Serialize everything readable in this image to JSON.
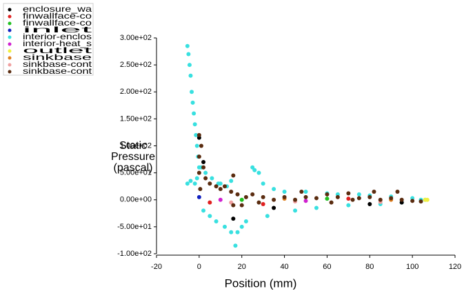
{
  "chart_data": {
    "type": "scatter",
    "x_label": "Position (mm)",
    "y_label": [
      "Static",
      "Pressure",
      "(pascal)"
    ],
    "xlim": [
      -20,
      120
    ],
    "xticks": [
      -20,
      0,
      20,
      40,
      60,
      80,
      100,
      120
    ],
    "ylim": [
      -100,
      300
    ],
    "yticks": [
      {
        "value": -100,
        "label": "-1.00e+02"
      },
      {
        "value": -50,
        "label": "-5.00e+01"
      },
      {
        "value": 0,
        "label": "0.00e+00"
      },
      {
        "value": 50,
        "label": "5.00e+01"
      },
      {
        "value": 100,
        "label": "1.00e+02"
      },
      {
        "value": 150,
        "label": "1.50e+02"
      },
      {
        "value": 200,
        "label": "2.00e+02"
      },
      {
        "value": 250,
        "label": "2.50e+02"
      },
      {
        "value": 300,
        "label": "3.00e+02"
      }
    ],
    "series": [
      {
        "name": "enclosure_wa",
        "color": "#000000",
        "x": [
          0,
          2,
          16,
          35,
          80,
          95
        ],
        "values": [
          115,
          70,
          -35,
          -15,
          -8,
          -5
        ]
      },
      {
        "name": "finwallface-co",
        "color": "#e02020",
        "x": [
          5,
          30,
          70
        ],
        "values": [
          -5,
          -8,
          2
        ]
      },
      {
        "name": "finwallface-co",
        "color": "#20c020",
        "x": [
          20,
          60
        ],
        "values": [
          0,
          2
        ]
      },
      {
        "name": "inlet",
        "color": "#1020c0",
        "x": [
          0
        ],
        "values": [
          5
        ]
      },
      {
        "name": "interior-enclos",
        "color": "#38e0e0",
        "x": [
          -5.5,
          -5,
          -4.5,
          -4,
          -3.5,
          -3,
          -2.5,
          -2,
          -1.5,
          -1,
          -0.5,
          0,
          -5.5,
          -4,
          -2,
          -1,
          1,
          3,
          6,
          9,
          10,
          13,
          15,
          2,
          5,
          8,
          12,
          15,
          17,
          18,
          20,
          22,
          25,
          26,
          28,
          30,
          32,
          35,
          40,
          45,
          50,
          55,
          60,
          65,
          70,
          75,
          80,
          85,
          90,
          95,
          100,
          104,
          106
        ],
        "values": [
          285,
          270,
          250,
          230,
          200,
          180,
          160,
          140,
          120,
          100,
          80,
          60,
          30,
          35,
          30,
          40,
          60,
          50,
          40,
          30,
          30,
          25,
          35,
          -20,
          -30,
          -40,
          -50,
          -60,
          -85,
          -60,
          -50,
          -40,
          60,
          55,
          50,
          30,
          -30,
          20,
          15,
          -20,
          15,
          -15,
          12,
          10,
          -10,
          10,
          8,
          -8,
          6,
          -5,
          3,
          0,
          0
        ]
      },
      {
        "name": "interior-heat_s",
        "color": "#d020d0",
        "x": [
          10,
          50
        ],
        "values": [
          0,
          -2
        ]
      },
      {
        "name": "outlet",
        "color": "#f0f040",
        "x": [
          106,
          107
        ],
        "values": [
          0,
          0
        ]
      },
      {
        "name": "sinkbase",
        "color": "#e08020",
        "x": [
          40,
          90
        ],
        "values": [
          2,
          0
        ]
      },
      {
        "name": "sinkbase-cont",
        "color": "#f0a0a0",
        "x": [
          15,
          45,
          85
        ],
        "values": [
          -5,
          -3,
          -4
        ]
      },
      {
        "name": "sinkbase-cont",
        "color": "#5a2c10",
        "x": [
          0,
          0,
          0,
          0.5,
          1,
          2,
          3,
          5,
          8,
          10,
          12,
          15,
          16,
          16,
          18,
          20,
          22,
          25,
          28,
          30,
          35,
          40,
          45,
          48,
          50,
          55,
          60,
          62,
          65,
          70,
          72,
          75,
          80,
          82,
          85,
          90,
          93,
          95,
          100,
          104
        ],
        "values": [
          120,
          80,
          50,
          20,
          100,
          60,
          40,
          30,
          25,
          20,
          25,
          15,
          45,
          -10,
          10,
          -10,
          5,
          10,
          -5,
          5,
          0,
          5,
          0,
          15,
          5,
          3,
          10,
          -5,
          5,
          12,
          0,
          3,
          5,
          15,
          0,
          3,
          15,
          0,
          -2,
          -3
        ]
      }
    ]
  }
}
